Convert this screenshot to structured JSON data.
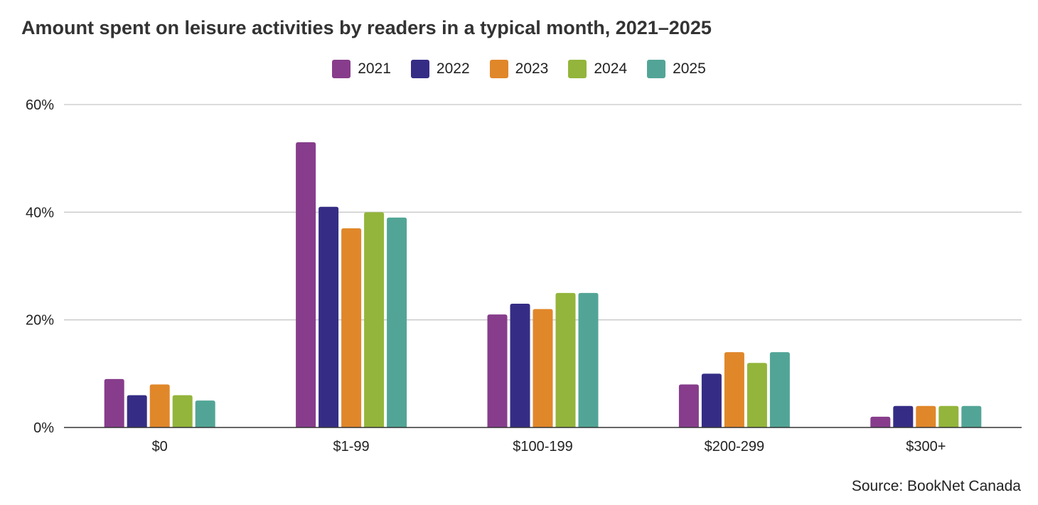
{
  "chart_data": {
    "type": "bar",
    "title": "Amount spent on leisure activities by readers in a typical month, 2021–2025",
    "xlabel": "",
    "ylabel": "",
    "categories": [
      "$0",
      "$1-99",
      "$100-199",
      "$200-299",
      "$300+"
    ],
    "series": [
      {
        "name": "2021",
        "color": "#873d8c",
        "values": [
          9,
          53,
          21,
          8,
          2
        ]
      },
      {
        "name": "2022",
        "color": "#352d85",
        "values": [
          6,
          41,
          23,
          10,
          4
        ]
      },
      {
        "name": "2023",
        "color": "#e0872a",
        "values": [
          8,
          37,
          22,
          14,
          4
        ]
      },
      {
        "name": "2024",
        "color": "#93b53b",
        "values": [
          6,
          40,
          25,
          12,
          4
        ]
      },
      {
        "name": "2025",
        "color": "#52a596",
        "values": [
          5,
          39,
          25,
          14,
          4
        ]
      }
    ],
    "ylim": [
      0,
      60
    ],
    "yticks": [
      "0%",
      "20%",
      "40%",
      "60%"
    ],
    "ytick_values": [
      0,
      20,
      40,
      60
    ],
    "grid": true,
    "legend_position": "top-center"
  },
  "source": "Source: BookNet Canada"
}
